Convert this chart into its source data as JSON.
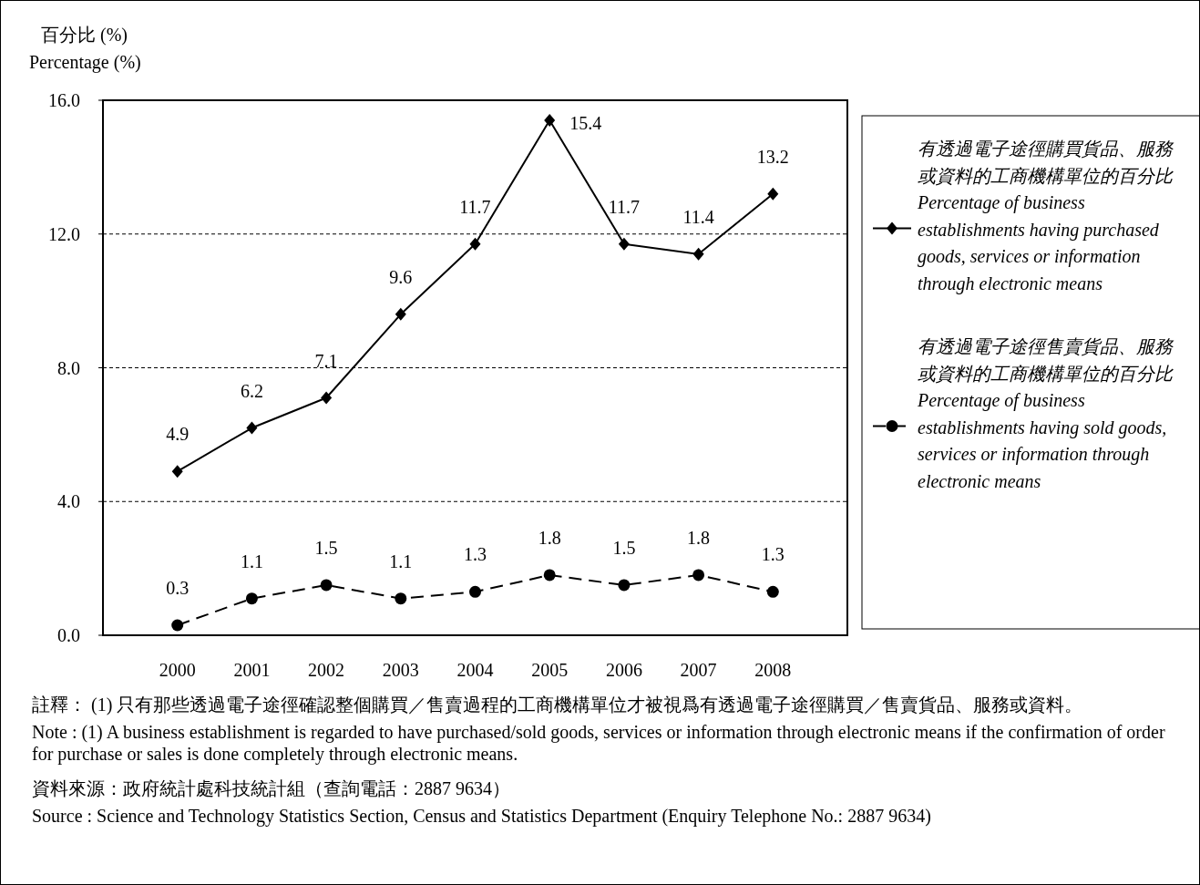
{
  "chart_data": {
    "type": "line",
    "ylabel": "百分比 (%)\nPercentage (%)",
    "categories": [
      "2000",
      "2001",
      "2002",
      "2003",
      "2004",
      "2005",
      "2006",
      "2007",
      "2008"
    ],
    "series": [
      {
        "name": "有透過電子途徑購買貨品、服務或資料的工商機構單位的百分比 Percentage of business establishments having purchased goods, services or information through electronic means",
        "color": "#000000",
        "marker": "diamond",
        "line_style": "solid",
        "values": [
          4.9,
          6.2,
          7.1,
          9.6,
          11.7,
          15.4,
          11.7,
          11.4,
          13.2
        ]
      },
      {
        "name": "有透過電子途徑售賣貨品、服務或資料的工商機構單位的百分比 Percentage of business establishments having sold goods, services or information through electronic means",
        "color": "#000000",
        "marker": "circle",
        "line_style": "dashed",
        "values": [
          0.3,
          1.1,
          1.5,
          1.1,
          1.3,
          1.8,
          1.5,
          1.8,
          1.3
        ]
      }
    ],
    "ylim": [
      0,
      16
    ],
    "yticks": [
      {
        "value": 0,
        "label": "0.0"
      },
      {
        "value": 4,
        "label": "4.0"
      },
      {
        "value": 8,
        "label": "8.0"
      },
      {
        "value": 12,
        "label": "12.0"
      },
      {
        "value": 16,
        "label": "16.0"
      }
    ],
    "grid": "y",
    "legend": "right",
    "data_labels": true,
    "annotations": [
      "註釋： (1) 只有那些透過電子途徑確認整個購買／售賣過程的工商機構單位才被視爲有透過電子途徑購買／售賣貨品、服務或資料。",
      "Note : (1) A business establishment is regarded to have purchased/sold goods, services or information through electronic means if the confirmation of order for purchase or sales is done completely through electronic means.",
      "資料來源：政府統計處科技統計組（查詢電話：2887 9634）",
      "Source : Science and Technology Statistics Section, Census and Statistics Department (Enquiry Telephone No.: 2887 9634)"
    ]
  }
}
